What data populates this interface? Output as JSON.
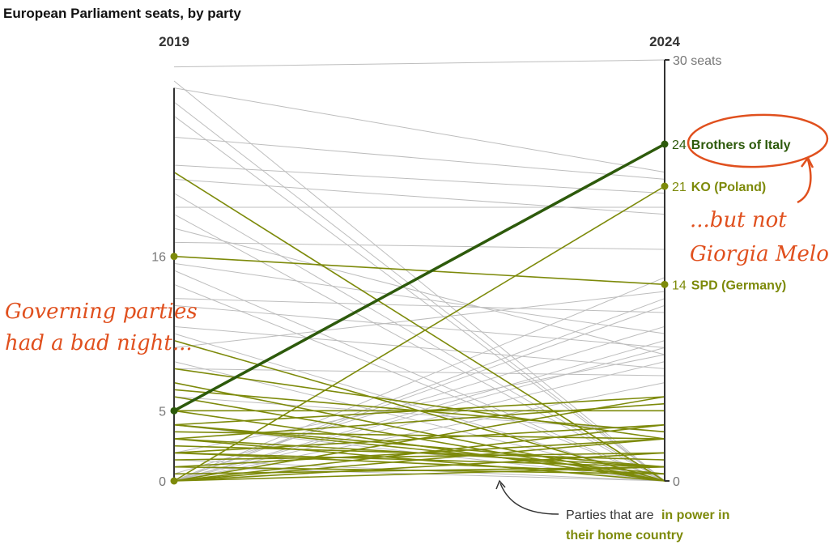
{
  "colors": {
    "other": "#bdbdbd",
    "governing": "#7d8a0a",
    "highlight": "#2d5a0b",
    "annotation": "#e0501e",
    "axis": "#333333",
    "tick": "#777777"
  },
  "chart_data": {
    "type": "slope",
    "title": "European Parliament seats, by party",
    "years": [
      "2019",
      "2024"
    ],
    "ylim": [
      0,
      30
    ],
    "axis_right_ticks": [
      {
        "value": 30,
        "label": "30 seats"
      },
      {
        "value": 0,
        "label": "0"
      }
    ],
    "axis_left_ticks": [
      {
        "value": 16,
        "label": "16"
      },
      {
        "value": 5,
        "label": "5"
      },
      {
        "value": 0,
        "label": "0"
      }
    ],
    "series_other": [
      [
        29.5,
        30
      ],
      [
        28.5,
        0
      ],
      [
        28,
        22
      ],
      [
        27,
        0
      ],
      [
        26,
        0
      ],
      [
        24.5,
        21.5
      ],
      [
        22.5,
        20.5
      ],
      [
        21.5,
        19
      ],
      [
        20.5,
        0
      ],
      [
        19.5,
        19.5
      ],
      [
        19,
        0
      ],
      [
        18,
        9
      ],
      [
        17,
        16.5
      ],
      [
        15.5,
        10.5
      ],
      [
        15,
        0
      ],
      [
        14,
        0
      ],
      [
        13,
        12
      ],
      [
        12.5,
        9.5
      ],
      [
        11,
        8
      ],
      [
        10.5,
        0
      ],
      [
        9.5,
        13.5
      ],
      [
        8.5,
        0
      ],
      [
        8,
        7.5
      ],
      [
        7,
        0
      ],
      [
        6,
        3.5
      ],
      [
        4,
        0
      ],
      [
        3,
        0
      ],
      [
        2,
        9
      ],
      [
        1.5,
        0
      ],
      [
        1,
        0
      ],
      [
        0.5,
        11
      ],
      [
        0,
        14.5
      ],
      [
        0,
        13
      ],
      [
        0,
        12.5
      ],
      [
        0,
        10
      ],
      [
        0,
        9.5
      ],
      [
        0,
        8.5
      ],
      [
        0,
        7
      ]
    ],
    "series_governing": [
      [
        22,
        0
      ],
      [
        16,
        14
      ],
      [
        10,
        0
      ],
      [
        8,
        3
      ],
      [
        7,
        0
      ],
      [
        6.5,
        3.5
      ],
      [
        6,
        0
      ],
      [
        5,
        5
      ],
      [
        5,
        0
      ],
      [
        4,
        6
      ],
      [
        4,
        1
      ],
      [
        4,
        0.5
      ],
      [
        3.5,
        3
      ],
      [
        3,
        5.5
      ],
      [
        3,
        1
      ],
      [
        3,
        0
      ],
      [
        2.5,
        1.5
      ],
      [
        2,
        4
      ],
      [
        2,
        1
      ],
      [
        2,
        0.5
      ],
      [
        1.5,
        2
      ],
      [
        1,
        3
      ],
      [
        1,
        0.5
      ],
      [
        0.5,
        1
      ],
      [
        0,
        21
      ],
      [
        0,
        6
      ],
      [
        0,
        4
      ],
      [
        0,
        3
      ],
      [
        0,
        2
      ],
      [
        0,
        1
      ]
    ],
    "highlight": {
      "name": "Brothers of Italy",
      "from": 5,
      "to": 24
    },
    "labels": [
      {
        "name": "Brothers of Italy",
        "value": 24,
        "value_label": "24",
        "style": "highlight"
      },
      {
        "name": "KO (Poland)",
        "value": 21,
        "value_label": "21",
        "style": "governing"
      },
      {
        "name": "SPD (Germany)",
        "value": 14,
        "value_label": "14",
        "style": "governing"
      }
    ],
    "annotations": {
      "left": [
        "Governing parties",
        "had a bad night..."
      ],
      "right": [
        "...but not",
        "Giorgia Meloni"
      ]
    },
    "legend": {
      "prefix": "Parties that are",
      "emphasis_line1": "in power in",
      "emphasis_line2": "their home country"
    }
  }
}
